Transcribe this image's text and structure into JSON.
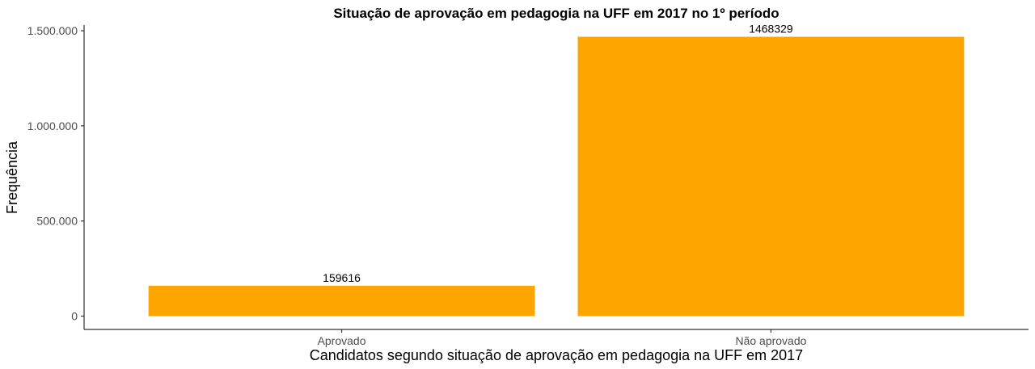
{
  "chart_data": {
    "type": "bar",
    "title": "Situação de aprovação em pedagogia na UFF em 2017 no 1º período",
    "xlabel": "Candidatos segundo situação de aprovação em pedagogia na UFF em 2017",
    "ylabel": "Frequência",
    "categories": [
      "Aprovado",
      "Não aprovado"
    ],
    "values": [
      159616,
      1468329
    ],
    "value_labels": [
      "159616",
      "1468329"
    ],
    "ylim": [
      -70000,
      1530000
    ],
    "yticks": [
      0,
      500000,
      1000000,
      1500000
    ],
    "ytick_labels": [
      "0",
      "500.000",
      "1.000.000",
      "1.500.000"
    ],
    "bar_color": "#FFA500",
    "grid": false,
    "legend": "none"
  }
}
